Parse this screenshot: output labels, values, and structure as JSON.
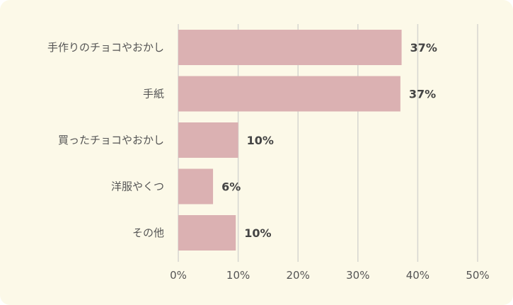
{
  "chart_data": {
    "type": "bar",
    "orientation": "horizontal",
    "categories": [
      "手作りのチョコやおかし",
      "手紙",
      "買ったチョコやおかし",
      "洋服やくつ",
      "その他"
    ],
    "values": [
      37.3,
      37.1,
      10.0,
      5.8,
      9.6
    ],
    "value_labels": [
      "37%",
      "37%",
      "10%",
      "6%",
      "10%"
    ],
    "xlim": [
      0,
      50
    ],
    "xticks": [
      0,
      10,
      20,
      30,
      40,
      50
    ],
    "xtick_labels": [
      "0%",
      "10%",
      "20%",
      "30%",
      "40%",
      "50%"
    ],
    "grid": "vertical",
    "legend": "none",
    "colors": {
      "bar": "#dbb1b2",
      "grid": "#d6d6d0",
      "background": "#fcf9e8"
    }
  }
}
